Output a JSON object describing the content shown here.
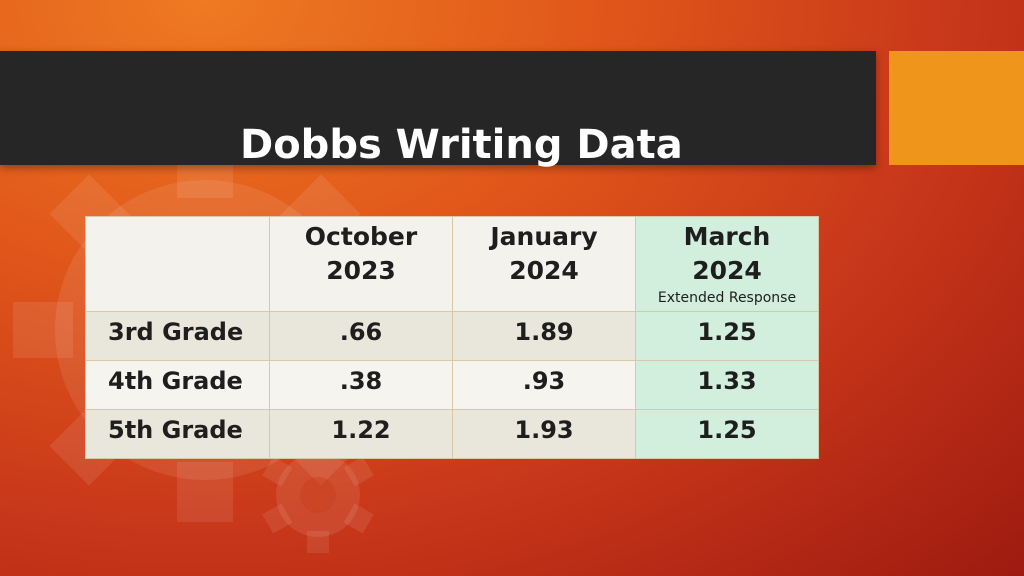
{
  "slide": {
    "title": "Dobbs Writing Data"
  },
  "table": {
    "headers": [
      {
        "line1": "",
        "line2": "",
        "note": ""
      },
      {
        "line1": "October",
        "line2": "2023",
        "note": ""
      },
      {
        "line1": "January",
        "line2": "2024",
        "note": ""
      },
      {
        "line1": "March",
        "line2": "2024",
        "note": "Extended Response"
      }
    ],
    "rows": [
      {
        "label": "3rd Grade",
        "values": [
          ".66",
          "1.89",
          "1.25"
        ]
      },
      {
        "label": "4th Grade",
        "values": [
          ".38",
          ".93",
          "1.33"
        ]
      },
      {
        "label": "5th Grade",
        "values": [
          "1.22",
          "1.93",
          "1.25"
        ]
      }
    ]
  },
  "colors": {
    "background": "#e0561a",
    "title_bar": "#262626",
    "accent_block": "#f0951c",
    "highlight_column": "#d2eedd"
  }
}
